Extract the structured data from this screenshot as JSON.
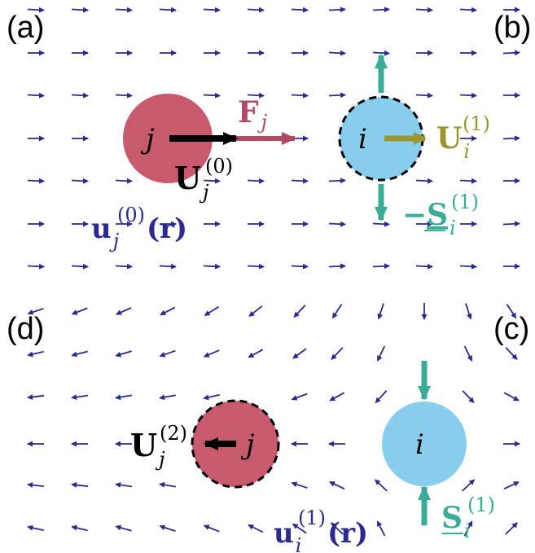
{
  "panels": [
    {
      "id": "a",
      "label": "(a)"
    },
    {
      "id": "b",
      "label": "(b)"
    },
    {
      "id": "c",
      "label": "(c)"
    },
    {
      "id": "d",
      "label": "(d)"
    }
  ],
  "bodies": {
    "j": "j",
    "i": "i"
  },
  "colors": {
    "particle_j": "#c85a6e",
    "particle_i": "#87ceee",
    "force": "#b04866",
    "velocity_first": "#9a9530",
    "stresslet": "#3aab96",
    "flow_arrow": "#2a2a90",
    "black": "#000000"
  },
  "labels": {
    "force": {
      "sym": "F",
      "sub": "j"
    },
    "u_j0": {
      "sym": "U",
      "sub": "j",
      "sup": "(0)"
    },
    "u_i1": {
      "sym": "U",
      "sub": "i",
      "sup": "(1)"
    },
    "s_i1_neg": {
      "prefix": "−",
      "sym": "S",
      "sub": "i",
      "sup": "(1)"
    },
    "s_i1": {
      "sym": "S",
      "sub": "i",
      "sup": "(1)"
    },
    "u_j2": {
      "sym": "U",
      "sub": "j",
      "sup": "(2)"
    },
    "flow_j0": {
      "sym": "u",
      "sub": "j",
      "sup": "(0)",
      "arg": "(r)"
    },
    "flow_i1": {
      "sym": "u",
      "sub": "i",
      "sup": "(1)",
      "arg": "(r)"
    }
  }
}
